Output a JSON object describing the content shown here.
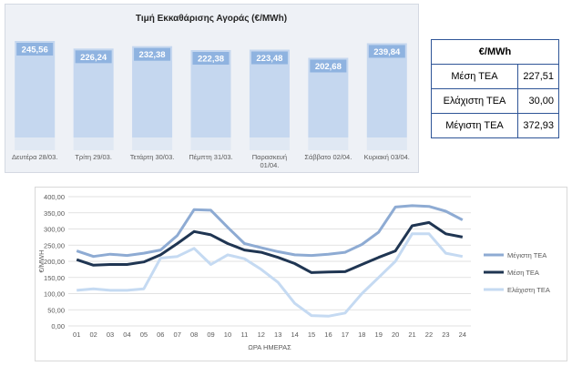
{
  "daily_chart": {
    "title": "Τιμή Εκκαθάρισης Αγοράς (€/MWh)"
  },
  "hourly_chart": {
    "xlabel": "ΩΡΑ ΗΜΕΡΑΣ",
    "ylabel": "€/MWH"
  },
  "stats_table": {
    "header": "€/MWh",
    "rows": [
      {
        "label": "Μέση ΤΕΑ",
        "value": "227,51"
      },
      {
        "label": "Ελάχιστη ΤΕΑ",
        "value": "30,00"
      },
      {
        "label": "Μέγιστη ΤΕΑ",
        "value": "372,93"
      }
    ]
  },
  "colors": {
    "bar": "#c5d7ef",
    "bar_label_bg": "#8fb3e0",
    "max_line": "#8eabd3",
    "avg_line": "#1f3552",
    "min_line": "#c5daf2",
    "table_border": "#2f5597"
  },
  "chart_data": [
    {
      "type": "bar",
      "title": "Τιμή Εκκαθάρισης Αγοράς (€/MWh)",
      "categories": [
        "Δευτέρα 28/03.",
        "Τρίτη 29/03.",
        "Τετάρτη 30/03.",
        "Πέμπτη 31/03.",
        "Παρασκευή 01/04.",
        "Σάββατο 02/04.",
        "Κυριακή 03/04."
      ],
      "values": [
        245.56,
        226.24,
        232.38,
        222.38,
        223.48,
        202.68,
        239.84
      ],
      "value_labels": [
        "245,56",
        "226,24",
        "232,38",
        "222,38",
        "223,48",
        "202,68",
        "239,84"
      ],
      "grid": false
    },
    {
      "type": "line",
      "xlabel": "ΩΡΑ ΗΜΕΡΑΣ",
      "ylabel": "€/MWH",
      "x": [
        "01",
        "02",
        "03",
        "04",
        "05",
        "06",
        "07",
        "08",
        "09",
        "10",
        "11",
        "12",
        "13",
        "14",
        "15",
        "16",
        "17",
        "18",
        "19",
        "20",
        "21",
        "22",
        "23",
        "24"
      ],
      "ylim": [
        0,
        400
      ],
      "yticks": [
        "0,00",
        "50,00",
        "100,00",
        "150,00",
        "200,00",
        "250,00",
        "300,00",
        "350,00",
        "400,00"
      ],
      "grid": true,
      "legend_position": "right",
      "series": [
        {
          "name": "Μέγιστη ΤΕΑ",
          "values": [
            232,
            215,
            222,
            218,
            225,
            235,
            280,
            360,
            358,
            305,
            255,
            242,
            230,
            220,
            218,
            222,
            228,
            252,
            290,
            368,
            372,
            370,
            355,
            328
          ]
        },
        {
          "name": "Μέση ΤΕΑ",
          "values": [
            205,
            188,
            190,
            190,
            198,
            220,
            255,
            292,
            282,
            255,
            235,
            228,
            212,
            193,
            165,
            167,
            168,
            190,
            212,
            232,
            310,
            320,
            285,
            275
          ]
        },
        {
          "name": "Ελάχιστη ΤΕΑ",
          "values": [
            110,
            115,
            110,
            110,
            115,
            210,
            215,
            240,
            190,
            220,
            208,
            175,
            135,
            70,
            32,
            30,
            40,
            100,
            150,
            200,
            285,
            285,
            225,
            215
          ]
        }
      ]
    }
  ]
}
